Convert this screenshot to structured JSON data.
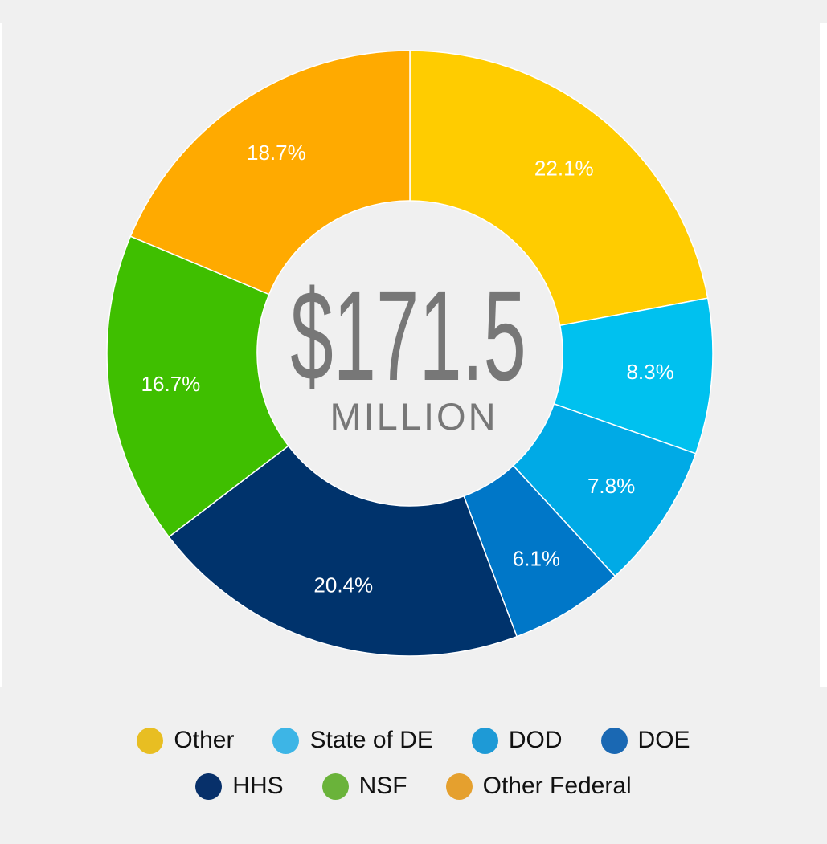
{
  "chart_data": {
    "type": "pie",
    "subtype": "donut",
    "center_label": {
      "value": "$171.5",
      "unit": "MILLION"
    },
    "categories": [
      "Other",
      "State of DE",
      "DOD",
      "DOE",
      "HHS",
      "NSF",
      "Other Federal"
    ],
    "values": [
      22.1,
      8.3,
      7.8,
      6.1,
      20.4,
      16.7,
      18.7
    ],
    "labels": [
      "22.1%",
      "8.3%",
      "7.8%",
      "6.1%",
      "20.4%",
      "16.7%",
      "18.7%"
    ],
    "slice_colors": [
      "#ffcc00",
      "#00c1ef",
      "#00aae6",
      "#0077c8",
      "#00336c",
      "#3fbf00",
      "#ffaa00"
    ],
    "legend_colors": [
      "#e8be22",
      "#3db5e6",
      "#1e9ad6",
      "#1a68b3",
      "#07306a",
      "#6ab33a",
      "#e5a02e"
    ],
    "legend_placement": "bottom",
    "start": "top",
    "direction": "clockwise"
  }
}
